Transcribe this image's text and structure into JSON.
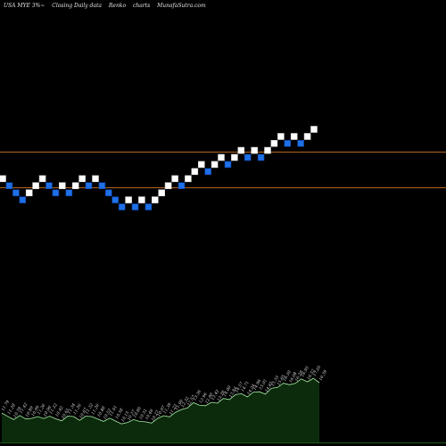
{
  "header": {
    "symbol": "USA MYE 3%~",
    "chart_desc": "Closing Daily data",
    "chart_type": "Renko",
    "chart_word": "charts",
    "site": "MunafaSutra.com"
  },
  "colors": {
    "background": "#000000",
    "up_brick": "#ffffff",
    "down_brick": "#1f6fe6",
    "down_brick_border": "#0a3d99",
    "support_line": "#b5651d",
    "volume_fill": "#0c2a0c",
    "volume_line": "#a7f0a7",
    "label_text": "#dddddd"
  },
  "chart_data": {
    "type": "renko",
    "title": "USA MYE 3%~ Closing Daily data Renko charts",
    "bricks": [
      {
        "dir": "up",
        "level": 11.6
      },
      {
        "dir": "down",
        "level": 11.26
      },
      {
        "dir": "down",
        "level": 10.93
      },
      {
        "dir": "down",
        "level": 10.61
      },
      {
        "dir": "up",
        "level": 10.93
      },
      {
        "dir": "up",
        "level": 11.26
      },
      {
        "dir": "up",
        "level": 11.6
      },
      {
        "dir": "down",
        "level": 11.26
      },
      {
        "dir": "down",
        "level": 10.93
      },
      {
        "dir": "up",
        "level": 11.26
      },
      {
        "dir": "down",
        "level": 10.93
      },
      {
        "dir": "up",
        "level": 11.26
      },
      {
        "dir": "up",
        "level": 11.6
      },
      {
        "dir": "down",
        "level": 11.26
      },
      {
        "dir": "up",
        "level": 11.6
      },
      {
        "dir": "down",
        "level": 11.26
      },
      {
        "dir": "down",
        "level": 10.93
      },
      {
        "dir": "down",
        "level": 10.61
      },
      {
        "dir": "down",
        "level": 10.3
      },
      {
        "dir": "up",
        "level": 10.61
      },
      {
        "dir": "down",
        "level": 10.3
      },
      {
        "dir": "up",
        "level": 10.61
      },
      {
        "dir": "down",
        "level": 10.3
      },
      {
        "dir": "up",
        "level": 10.61
      },
      {
        "dir": "up",
        "level": 10.93
      },
      {
        "dir": "up",
        "level": 11.26
      },
      {
        "dir": "up",
        "level": 11.6
      },
      {
        "dir": "down",
        "level": 11.26
      },
      {
        "dir": "up",
        "level": 11.6
      },
      {
        "dir": "up",
        "level": 11.95
      },
      {
        "dir": "up",
        "level": 12.31
      },
      {
        "dir": "down",
        "level": 11.95
      },
      {
        "dir": "up",
        "level": 12.31
      },
      {
        "dir": "up",
        "level": 12.68
      },
      {
        "dir": "down",
        "level": 12.31
      },
      {
        "dir": "up",
        "level": 12.68
      },
      {
        "dir": "up",
        "level": 13.06
      },
      {
        "dir": "down",
        "level": 12.68
      },
      {
        "dir": "up",
        "level": 13.06
      },
      {
        "dir": "down",
        "level": 12.68
      },
      {
        "dir": "up",
        "level": 13.06
      },
      {
        "dir": "up",
        "level": 13.45
      },
      {
        "dir": "up",
        "level": 13.85
      },
      {
        "dir": "down",
        "level": 13.45
      },
      {
        "dir": "up",
        "level": 13.85
      },
      {
        "dir": "down",
        "level": 13.45
      },
      {
        "dir": "up",
        "level": 13.85
      },
      {
        "dir": "up",
        "level": 14.27
      }
    ],
    "support_levels": [
      13.0,
      11.2
    ],
    "volume_labels": [
      "11.79",
      "11.28",
      "10.79",
      "11.42",
      "10.89",
      "10.99",
      "11.26",
      "10.96",
      "11.32",
      "10.92",
      "10.61",
      "11.34",
      "11.26",
      "10.67",
      "11.32",
      "11.26",
      "10.88",
      "10.52",
      "11.01",
      "10.58",
      "10.15",
      "10.37",
      "10.80",
      "10.51",
      "10.46",
      "10.27",
      "10.97",
      "11.39",
      "11.22",
      "11.90",
      "12.32",
      "12.57",
      "13.36",
      "12.96",
      "12.90",
      "13.42",
      "13.28",
      "14.00",
      "13.84",
      "14.57",
      "14.71",
      "14.24",
      "14.96",
      "15.01",
      "14.65",
      "15.55",
      "15.65",
      "16.30",
      "16.08",
      "16.28",
      "16.95",
      "16.52",
      "17.05",
      "16.39"
    ]
  }
}
